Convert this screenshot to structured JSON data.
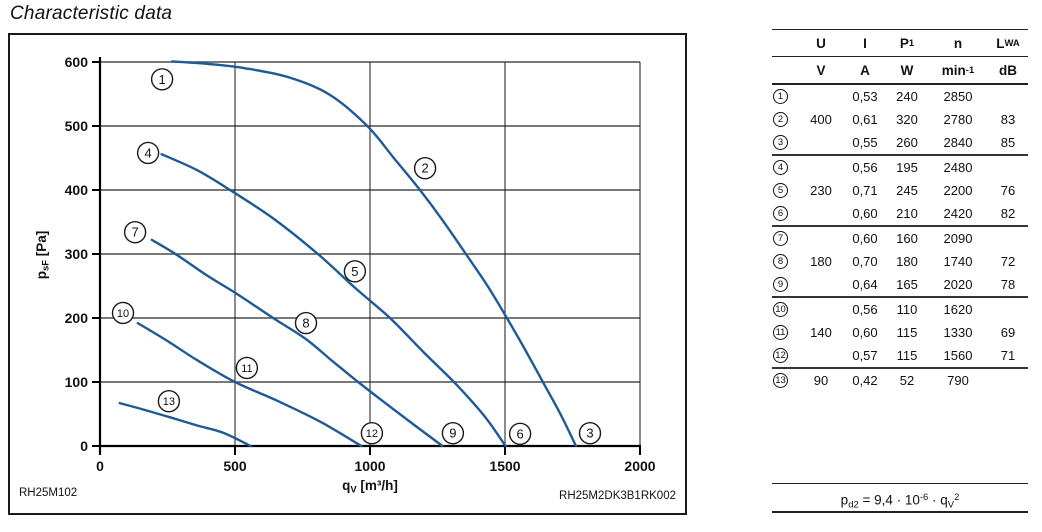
{
  "page": {
    "title": "Characteristic data"
  },
  "chart": {
    "code_left": "RH25M102",
    "code_right": "RH25M2DK3B1RK002",
    "ylabel_parts": [
      {
        "t": "p"
      },
      {
        "t": "sF",
        "s": "sub"
      },
      {
        "t": " [Pa]"
      }
    ],
    "xlabel_parts": [
      {
        "t": "q"
      },
      {
        "t": "V",
        "s": "sub"
      },
      {
        "t": " [m³/h]"
      }
    ]
  },
  "chart_data": {
    "type": "line",
    "title": "",
    "xlabel": "qV [m³/h]",
    "ylabel": "psF [Pa]",
    "xlim": [
      0,
      2000
    ],
    "ylim": [
      0,
      600
    ],
    "x_ticks": [
      0,
      500,
      1000,
      1500,
      2000
    ],
    "y_ticks": [
      0,
      100,
      200,
      300,
      400,
      500,
      600
    ],
    "grid": true,
    "curve_color": "#1e5a96",
    "series": [
      {
        "name": "fan-curve-1-2-3",
        "points": [
          [
            267,
            601
          ],
          [
            400,
            597
          ],
          [
            540,
            590
          ],
          [
            700,
            576
          ],
          [
            850,
            549
          ],
          [
            990,
            500
          ],
          [
            1090,
            449
          ],
          [
            1185,
            400
          ],
          [
            1272,
            351
          ],
          [
            1355,
            300
          ],
          [
            1437,
            249
          ],
          [
            1507,
            200
          ],
          [
            1575,
            150
          ],
          [
            1643,
            98
          ],
          [
            1705,
            50
          ],
          [
            1763,
            0
          ]
        ]
      },
      {
        "name": "fan-curve-4-5-6",
        "points": [
          [
            228,
            456
          ],
          [
            360,
            431
          ],
          [
            482,
            400
          ],
          [
            650,
            353
          ],
          [
            807,
            300
          ],
          [
            945,
            247
          ],
          [
            1074,
            200
          ],
          [
            1200,
            146
          ],
          [
            1320,
            96
          ],
          [
            1425,
            46
          ],
          [
            1502,
            0
          ]
        ]
      },
      {
        "name": "fan-curve-7-8-9",
        "points": [
          [
            192,
            322
          ],
          [
            283,
            299
          ],
          [
            398,
            266
          ],
          [
            502,
            239
          ],
          [
            641,
            200
          ],
          [
            763,
            167
          ],
          [
            860,
            133
          ],
          [
            956,
            100
          ],
          [
            1110,
            50
          ],
          [
            1268,
            0
          ]
        ]
      },
      {
        "name": "fan-curve-10-11-12",
        "points": [
          [
            140,
            192
          ],
          [
            250,
            164
          ],
          [
            360,
            134
          ],
          [
            500,
            100
          ],
          [
            660,
            70
          ],
          [
            820,
            37
          ],
          [
            968,
            0
          ]
        ]
      },
      {
        "name": "fan-curve-13",
        "points": [
          [
            73,
            67
          ],
          [
            160,
            57
          ],
          [
            258,
            45
          ],
          [
            360,
            32
          ],
          [
            455,
            21
          ],
          [
            558,
            0
          ]
        ]
      }
    ],
    "point_labels": [
      {
        "n": "1",
        "q": 230,
        "p": 573
      },
      {
        "n": "2",
        "q": 1204,
        "p": 434
      },
      {
        "n": "3",
        "q": 1815,
        "p": 20
      },
      {
        "n": "4",
        "q": 178,
        "p": 458
      },
      {
        "n": "5",
        "q": 944,
        "p": 273
      },
      {
        "n": "6",
        "q": 1556,
        "p": 19
      },
      {
        "n": "7",
        "q": 130,
        "p": 334
      },
      {
        "n": "8",
        "q": 763,
        "p": 192
      },
      {
        "n": "9",
        "q": 1307,
        "p": 20
      },
      {
        "n": "10",
        "q": 85,
        "p": 208
      },
      {
        "n": "11",
        "q": 544,
        "p": 122
      },
      {
        "n": "12",
        "q": 1007,
        "p": 20
      },
      {
        "n": "13",
        "q": 255,
        "p": 70
      }
    ]
  },
  "table": {
    "header_cols": [
      [
        {
          "t": "U"
        }
      ],
      [
        {
          "t": "I"
        }
      ],
      [
        {
          "t": "P"
        },
        {
          "t": "1",
          "s": "sub"
        }
      ],
      [
        {
          "t": "n"
        }
      ],
      [
        {
          "t": "L"
        },
        {
          "t": "WA",
          "s": "sub"
        }
      ]
    ],
    "unit_cols": [
      [
        {
          "t": "V"
        }
      ],
      [
        {
          "t": "A"
        }
      ],
      [
        {
          "t": "W"
        }
      ],
      [
        {
          "t": "min"
        },
        {
          "t": "-1",
          "s": "sup"
        }
      ],
      [
        {
          "t": "dB"
        }
      ]
    ],
    "rows": [
      {
        "no": "1",
        "u": "",
        "i": "0,53",
        "p1": "240",
        "n": "2850",
        "lwa": "",
        "group_end": false
      },
      {
        "no": "2",
        "u": "400",
        "i": "0,61",
        "p1": "320",
        "n": "2780",
        "lwa": "83",
        "group_end": false
      },
      {
        "no": "3",
        "u": "",
        "i": "0,55",
        "p1": "260",
        "n": "2840",
        "lwa": "85",
        "group_end": true
      },
      {
        "no": "4",
        "u": "",
        "i": "0,56",
        "p1": "195",
        "n": "2480",
        "lwa": "",
        "group_end": false
      },
      {
        "no": "5",
        "u": "230",
        "i": "0,71",
        "p1": "245",
        "n": "2200",
        "lwa": "76",
        "group_end": false
      },
      {
        "no": "6",
        "u": "",
        "i": "0,60",
        "p1": "210",
        "n": "2420",
        "lwa": "82",
        "group_end": true
      },
      {
        "no": "7",
        "u": "",
        "i": "0,60",
        "p1": "160",
        "n": "2090",
        "lwa": "",
        "group_end": false
      },
      {
        "no": "8",
        "u": "180",
        "i": "0,70",
        "p1": "180",
        "n": "1740",
        "lwa": "72",
        "group_end": false
      },
      {
        "no": "9",
        "u": "",
        "i": "0,64",
        "p1": "165",
        "n": "2020",
        "lwa": "78",
        "group_end": true
      },
      {
        "no": "10",
        "u": "",
        "i": "0,56",
        "p1": "110",
        "n": "1620",
        "lwa": "",
        "group_end": false
      },
      {
        "no": "11",
        "u": "140",
        "i": "0,60",
        "p1": "115",
        "n": "1330",
        "lwa": "69",
        "group_end": false
      },
      {
        "no": "12",
        "u": "",
        "i": "0,57",
        "p1": "115",
        "n": "1560",
        "lwa": "71",
        "group_end": true
      },
      {
        "no": "13",
        "u": "90",
        "i": "0,42",
        "p1": "52",
        "n": "790",
        "lwa": "",
        "group_end": false
      }
    ]
  },
  "formula": {
    "parts": [
      {
        "t": "p"
      },
      {
        "t": "d2",
        "s": "sub"
      },
      {
        "t": " = 9,4 · 10"
      },
      {
        "t": "-6",
        "s": "sup"
      },
      {
        "t": " · q"
      },
      {
        "t": "V",
        "s": "sub"
      },
      {
        "t": "2",
        "s": "sup"
      }
    ]
  },
  "colors": {
    "curve": "#1e5a96",
    "grid_h": "#4d4d4d",
    "grid_v": "#1a1a1a",
    "axis": "#000000"
  }
}
